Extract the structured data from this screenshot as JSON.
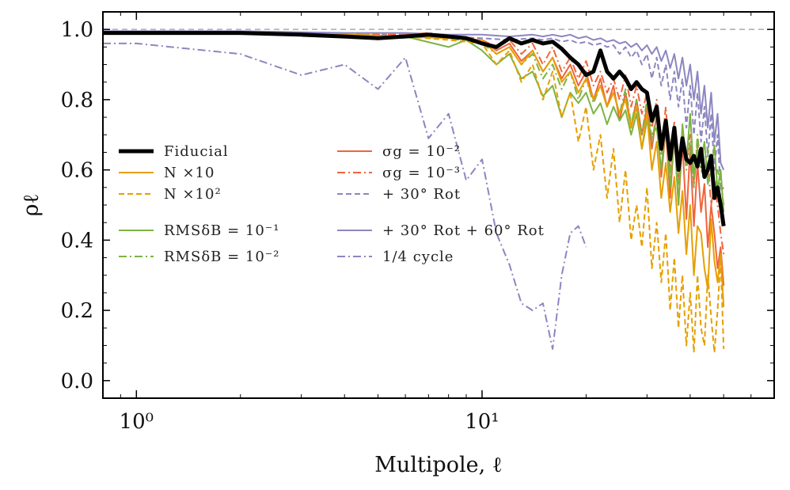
{
  "chart_data": {
    "type": "line",
    "title": "",
    "xlabel": "Multipole, ℓ",
    "ylabel": "ρℓ",
    "xscale": "log",
    "xlim": [
      0.8,
      70
    ],
    "ylim": [
      -0.05,
      1.05
    ],
    "x_ticks": [
      {
        "value": 1,
        "label": "10⁰"
      },
      {
        "value": 10,
        "label": "10¹"
      }
    ],
    "y_ticks": [
      {
        "value": 0.0,
        "label": "0.0"
      },
      {
        "value": 0.2,
        "label": "0.2"
      },
      {
        "value": 0.4,
        "label": "0.4"
      },
      {
        "value": 0.6,
        "label": "0.6"
      },
      {
        "value": 0.8,
        "label": "0.8"
      },
      {
        "value": 1.0,
        "label": "1.0"
      }
    ],
    "reference_line": {
      "y": 1.0,
      "color": "#aaaaaa",
      "dash": "dashed"
    },
    "legend_position": "center-left",
    "series": [
      {
        "name": "Fiducial",
        "color": "#000000",
        "dash": "solid",
        "width": 5,
        "x": [
          0.8,
          1,
          2,
          3,
          4,
          5,
          6,
          7,
          8,
          9,
          10,
          11,
          12,
          13,
          14,
          15,
          16,
          17,
          18,
          19,
          20,
          21,
          22,
          23,
          24,
          25,
          26,
          27,
          28,
          29,
          30,
          31,
          32,
          33,
          34,
          35,
          36,
          37,
          38,
          39,
          40,
          41,
          42,
          43,
          44,
          45,
          46,
          47,
          48,
          49,
          50
        ],
        "y": [
          0.99,
          0.99,
          0.99,
          0.985,
          0.98,
          0.975,
          0.98,
          0.985,
          0.98,
          0.975,
          0.96,
          0.95,
          0.975,
          0.96,
          0.97,
          0.96,
          0.965,
          0.945,
          0.92,
          0.9,
          0.87,
          0.88,
          0.94,
          0.88,
          0.86,
          0.88,
          0.86,
          0.83,
          0.85,
          0.83,
          0.82,
          0.74,
          0.78,
          0.66,
          0.74,
          0.63,
          0.72,
          0.6,
          0.69,
          0.63,
          0.62,
          0.64,
          0.61,
          0.66,
          0.58,
          0.6,
          0.64,
          0.52,
          0.55,
          0.5,
          0.44
        ]
      },
      {
        "name": "N ×10",
        "color": "#E69F00",
        "dash": "solid",
        "width": 2,
        "x": [
          0.8,
          1,
          2,
          4,
          6,
          8,
          10,
          11,
          12,
          13,
          14,
          15,
          16,
          17,
          18,
          19,
          20,
          21,
          22,
          23,
          24,
          25,
          26,
          27,
          28,
          29,
          30,
          31,
          32,
          33,
          34,
          35,
          36,
          37,
          38,
          39,
          40,
          41,
          42,
          43,
          44,
          45,
          46,
          47,
          48,
          49,
          50
        ],
        "y": [
          0.99,
          0.99,
          0.99,
          0.985,
          0.98,
          0.975,
          0.97,
          0.93,
          0.95,
          0.9,
          0.94,
          0.88,
          0.92,
          0.85,
          0.88,
          0.82,
          0.86,
          0.8,
          0.84,
          0.78,
          0.82,
          0.76,
          0.8,
          0.72,
          0.78,
          0.66,
          0.76,
          0.6,
          0.68,
          0.52,
          0.62,
          0.48,
          0.58,
          0.42,
          0.54,
          0.36,
          0.5,
          0.3,
          0.44,
          0.42,
          0.32,
          0.26,
          0.46,
          0.34,
          0.28,
          0.36,
          0.21
        ]
      },
      {
        "name": "N ×10²",
        "color": "#E69F00",
        "dash": "dashed",
        "width": 2,
        "x": [
          0.8,
          1,
          2,
          4,
          6,
          8,
          10,
          11,
          12,
          13,
          14,
          15,
          16,
          17,
          18,
          19,
          20,
          21,
          22,
          23,
          24,
          25,
          26,
          27,
          28,
          29,
          30,
          31,
          32,
          33,
          34,
          35,
          36,
          37,
          38,
          39,
          40,
          41,
          42,
          43,
          44,
          45,
          46,
          47,
          48,
          49,
          50
        ],
        "y": [
          0.99,
          0.99,
          0.99,
          0.985,
          0.98,
          0.97,
          0.96,
          0.9,
          0.94,
          0.85,
          0.9,
          0.8,
          0.88,
          0.75,
          0.82,
          0.68,
          0.78,
          0.6,
          0.7,
          0.52,
          0.66,
          0.45,
          0.6,
          0.4,
          0.5,
          0.38,
          0.55,
          0.32,
          0.45,
          0.28,
          0.42,
          0.2,
          0.35,
          0.15,
          0.3,
          0.1,
          0.25,
          0.08,
          0.3,
          0.15,
          0.1,
          0.3,
          0.18,
          0.08,
          0.2,
          0.35,
          0.09
        ]
      },
      {
        "name": "RMSδB = 10⁻¹",
        "color": "#7CB342",
        "dash": "solid",
        "width": 2,
        "x": [
          0.8,
          1,
          2,
          4,
          6,
          8,
          9,
          10,
          11,
          12,
          13,
          14,
          15,
          16,
          17,
          18,
          19,
          20,
          21,
          22,
          23,
          24,
          25,
          26,
          27,
          28,
          29,
          30,
          31,
          32,
          33,
          34,
          35,
          36,
          37,
          38,
          39,
          40,
          41,
          42,
          43,
          44,
          45,
          46,
          47,
          48,
          49,
          50
        ],
        "y": [
          0.99,
          0.99,
          0.99,
          0.985,
          0.98,
          0.95,
          0.97,
          0.94,
          0.9,
          0.93,
          0.86,
          0.88,
          0.81,
          0.84,
          0.75,
          0.82,
          0.79,
          0.82,
          0.76,
          0.79,
          0.73,
          0.78,
          0.74,
          0.77,
          0.7,
          0.76,
          0.66,
          0.74,
          0.7,
          0.72,
          0.6,
          0.74,
          0.55,
          0.7,
          0.5,
          0.73,
          0.62,
          0.76,
          0.58,
          0.66,
          0.62,
          0.68,
          0.56,
          0.6,
          0.67,
          0.54,
          0.6,
          0.48
        ]
      },
      {
        "name": "RMSδB = 10⁻²",
        "color": "#7CB342",
        "dash": "dashdot",
        "width": 2,
        "x": [
          0.8,
          1,
          2,
          4,
          6,
          8,
          10,
          11,
          12,
          13,
          14,
          15,
          16,
          17,
          18,
          19,
          20,
          21,
          22,
          23,
          24,
          25,
          26,
          27,
          28,
          29,
          30,
          31,
          32,
          33,
          34,
          35,
          36,
          37,
          38,
          39,
          40,
          41,
          42,
          43,
          44,
          45,
          46,
          47,
          48,
          49,
          50
        ],
        "y": [
          0.99,
          0.99,
          0.99,
          0.985,
          0.98,
          0.975,
          0.96,
          0.93,
          0.95,
          0.9,
          0.93,
          0.86,
          0.9,
          0.83,
          0.88,
          0.8,
          0.86,
          0.79,
          0.84,
          0.78,
          0.82,
          0.76,
          0.83,
          0.73,
          0.8,
          0.7,
          0.8,
          0.68,
          0.76,
          0.64,
          0.74,
          0.58,
          0.72,
          0.56,
          0.7,
          0.6,
          0.68,
          0.55,
          0.7,
          0.6,
          0.58,
          0.66,
          0.6,
          0.52,
          0.6,
          0.56,
          0.5
        ]
      },
      {
        "name": "σg = 10⁻²",
        "color": "#F0643C",
        "dash": "solid",
        "width": 2,
        "x": [
          0.8,
          1,
          2,
          4,
          6,
          7,
          8,
          10,
          11,
          12,
          13,
          14,
          15,
          16,
          17,
          18,
          19,
          20,
          21,
          22,
          23,
          24,
          25,
          26,
          27,
          28,
          29,
          30,
          31,
          32,
          33,
          34,
          35,
          36,
          37,
          38,
          39,
          40,
          41,
          42,
          43,
          44,
          45,
          46,
          47,
          48,
          49,
          50
        ],
        "y": [
          0.99,
          0.99,
          0.99,
          0.985,
          0.98,
          0.985,
          0.975,
          0.97,
          0.94,
          0.96,
          0.91,
          0.94,
          0.88,
          0.92,
          0.86,
          0.9,
          0.84,
          0.88,
          0.8,
          0.86,
          0.78,
          0.84,
          0.74,
          0.82,
          0.72,
          0.8,
          0.7,
          0.78,
          0.66,
          0.76,
          0.58,
          0.72,
          0.52,
          0.7,
          0.5,
          0.68,
          0.46,
          0.66,
          0.44,
          0.62,
          0.48,
          0.56,
          0.38,
          0.5,
          0.42,
          0.32,
          0.38,
          0.27
        ]
      },
      {
        "name": "σg = 10⁻³",
        "color": "#F0643C",
        "dash": "dashdot",
        "width": 2,
        "x": [
          0.8,
          1,
          2,
          4,
          6,
          7,
          8,
          10,
          11,
          12,
          13,
          14,
          15,
          16,
          17,
          18,
          19,
          20,
          21,
          22,
          23,
          24,
          25,
          26,
          27,
          28,
          29,
          30,
          31,
          32,
          33,
          34,
          35,
          36,
          37,
          38,
          39,
          40,
          41,
          42,
          43,
          44,
          45,
          46,
          47,
          48,
          49,
          50
        ],
        "y": [
          0.99,
          0.99,
          0.99,
          0.985,
          0.985,
          0.99,
          0.98,
          0.97,
          0.95,
          0.97,
          0.93,
          0.96,
          0.9,
          0.95,
          0.88,
          0.92,
          0.86,
          0.91,
          0.84,
          0.88,
          0.82,
          0.86,
          0.8,
          0.87,
          0.78,
          0.84,
          0.76,
          0.82,
          0.72,
          0.8,
          0.66,
          0.78,
          0.6,
          0.74,
          0.58,
          0.72,
          0.62,
          0.7,
          0.56,
          0.68,
          0.6,
          0.58,
          0.62,
          0.5,
          0.56,
          0.5,
          0.42,
          0.36
        ]
      },
      {
        "name": "+ 30° Rot",
        "color": "#8C86C0",
        "dash": "dashed",
        "width": 2,
        "x": [
          0.8,
          1,
          2,
          4,
          6,
          8,
          10,
          12,
          14,
          15,
          16,
          17,
          18,
          19,
          20,
          21,
          22,
          23,
          24,
          25,
          26,
          27,
          28,
          29,
          30,
          31,
          32,
          33,
          34,
          35,
          36,
          37,
          38,
          39,
          40,
          41,
          42,
          43,
          44,
          45,
          46,
          47,
          48,
          49,
          50
        ],
        "y": [
          0.99,
          0.99,
          0.99,
          0.985,
          0.985,
          0.98,
          0.975,
          0.97,
          0.975,
          0.97,
          0.975,
          0.965,
          0.97,
          0.96,
          0.965,
          0.955,
          0.96,
          0.95,
          0.955,
          0.93,
          0.95,
          0.92,
          0.94,
          0.9,
          0.93,
          0.86,
          0.92,
          0.84,
          0.9,
          0.8,
          0.88,
          0.78,
          0.86,
          0.72,
          0.84,
          0.7,
          0.82,
          0.68,
          0.78,
          0.64,
          0.76,
          0.6,
          0.7,
          0.54,
          0.55
        ]
      },
      {
        "name": "+ 30° Rot + 60° Rot",
        "color": "#8C86C0",
        "dash": "solid",
        "width": 2,
        "x": [
          0.8,
          1,
          2,
          4,
          6,
          8,
          10,
          12,
          14,
          15,
          16,
          17,
          18,
          19,
          20,
          21,
          22,
          23,
          24,
          25,
          26,
          27,
          28,
          29,
          30,
          31,
          32,
          33,
          34,
          35,
          36,
          37,
          38,
          39,
          40,
          41,
          42,
          43,
          44,
          45,
          46,
          47,
          48,
          49,
          50
        ],
        "y": [
          0.995,
          0.995,
          0.995,
          0.99,
          0.99,
          0.985,
          0.985,
          0.98,
          0.985,
          0.98,
          0.985,
          0.98,
          0.985,
          0.975,
          0.98,
          0.97,
          0.975,
          0.965,
          0.97,
          0.96,
          0.965,
          0.95,
          0.96,
          0.94,
          0.955,
          0.93,
          0.95,
          0.91,
          0.94,
          0.89,
          0.93,
          0.86,
          0.92,
          0.84,
          0.9,
          0.8,
          0.88,
          0.76,
          0.84,
          0.72,
          0.82,
          0.68,
          0.76,
          0.62,
          0.6
        ]
      },
      {
        "name": "1/4 cycle",
        "color": "#8C86C0",
        "dash": "dashdot",
        "width": 2,
        "x": [
          0.8,
          1,
          2,
          3,
          4,
          5,
          6,
          7,
          8,
          9,
          10,
          11,
          12,
          13,
          14,
          15,
          16,
          17,
          18,
          19,
          20
        ],
        "y": [
          0.96,
          0.96,
          0.93,
          0.87,
          0.9,
          0.83,
          0.92,
          0.69,
          0.76,
          0.57,
          0.63,
          0.42,
          0.33,
          0.22,
          0.2,
          0.22,
          0.09,
          0.3,
          0.42,
          0.44,
          0.38
        ]
      }
    ]
  }
}
